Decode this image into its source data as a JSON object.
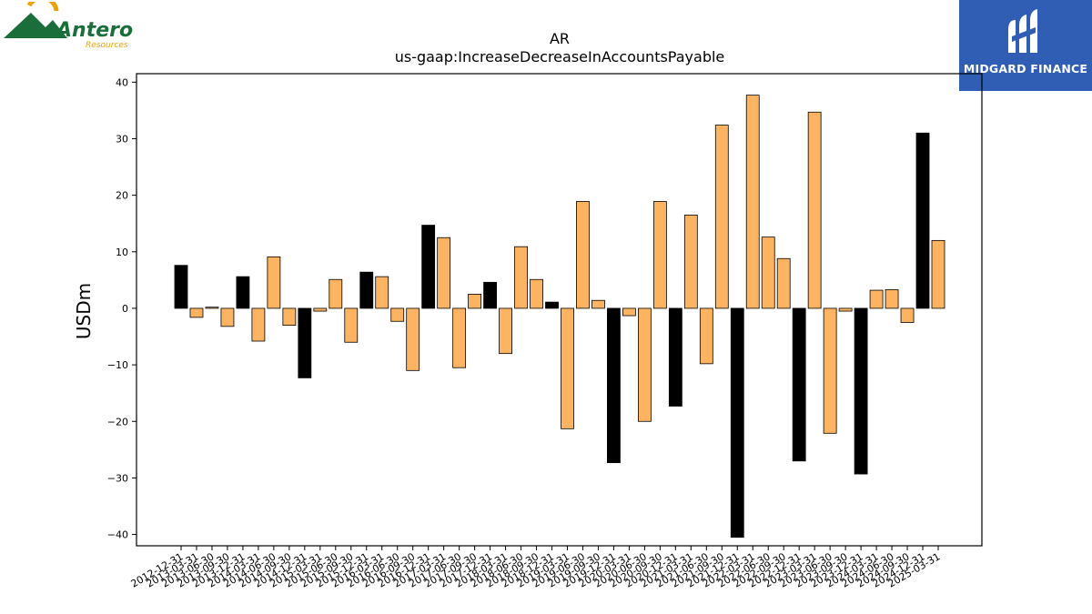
{
  "logos": {
    "left": {
      "name": "Antero",
      "tagline": "Resources"
    },
    "right": {
      "name": "MIDGARD FINANCE"
    }
  },
  "colors": {
    "positive_bar": "#fdb462",
    "highlight_bar": "#000000",
    "bar_edge": "#000000",
    "antero_green": "#1a6e3a",
    "antero_orange": "#f0a000",
    "midgard_blue": "#2f5eb4"
  },
  "chart_data": {
    "type": "bar",
    "title": "AR",
    "subtitle": "us-gaap:IncreaseDecreaseInAccountsPayable",
    "xlabel": "",
    "ylabel": "USDm",
    "ylim": [
      -42,
      41.5
    ],
    "yticks": [
      -40,
      -30,
      -20,
      -10,
      0,
      10,
      20,
      30,
      40
    ],
    "grid": false,
    "categories": [
      "2012-12-31",
      "2013-03-31",
      "2013-06-30",
      "2013-09-30",
      "2013-12-31",
      "2014-03-31",
      "2014-06-30",
      "2014-09-30",
      "2014-12-31",
      "2015-03-31",
      "2015-06-30",
      "2015-09-30",
      "2015-12-31",
      "2016-03-31",
      "2016-06-30",
      "2016-09-30",
      "2016-12-31",
      "2017-03-31",
      "2017-06-30",
      "2017-09-30",
      "2017-12-31",
      "2018-03-31",
      "2018-06-30",
      "2018-09-30",
      "2018-12-31",
      "2019-03-31",
      "2019-06-30",
      "2019-09-30",
      "2019-12-31",
      "2020-03-31",
      "2020-06-30",
      "2020-09-30",
      "2020-12-31",
      "2021-03-31",
      "2021-06-30",
      "2021-09-30",
      "2021-12-31",
      "2022-03-31",
      "2022-06-30",
      "2022-09-30",
      "2022-12-31",
      "2023-03-31",
      "2023-06-30",
      "2023-09-30",
      "2023-12-31",
      "2024-03-31",
      "2024-06-30",
      "2024-09-30",
      "2024-12-31",
      "2025-03-31"
    ],
    "values": [
      7.6,
      -1.6,
      0.2,
      -3.2,
      5.6,
      -5.8,
      9.1,
      -3.0,
      -12.3,
      -0.5,
      5.1,
      -6.0,
      6.4,
      5.6,
      -2.3,
      -11.0,
      14.7,
      12.5,
      -10.5,
      2.5,
      4.6,
      -8.0,
      10.9,
      5.1,
      1.1,
      -21.3,
      18.9,
      1.4,
      -27.3,
      -1.3,
      -20.0,
      18.9,
      -17.3,
      16.5,
      -9.8,
      32.4,
      -40.5,
      37.7,
      12.6,
      8.8,
      -27.0,
      34.7,
      -22.1,
      -0.5,
      -29.3,
      3.2,
      3.3,
      -2.5,
      31.0,
      12.0
    ],
    "highlight_categories": [
      "2012-12-31",
      "2013-12-31",
      "2014-12-31",
      "2015-12-31",
      "2016-12-31",
      "2017-12-31",
      "2018-12-31",
      "2019-12-31",
      "2020-12-31",
      "2021-12-31",
      "2022-12-31",
      "2023-12-31",
      "2024-12-31"
    ]
  }
}
